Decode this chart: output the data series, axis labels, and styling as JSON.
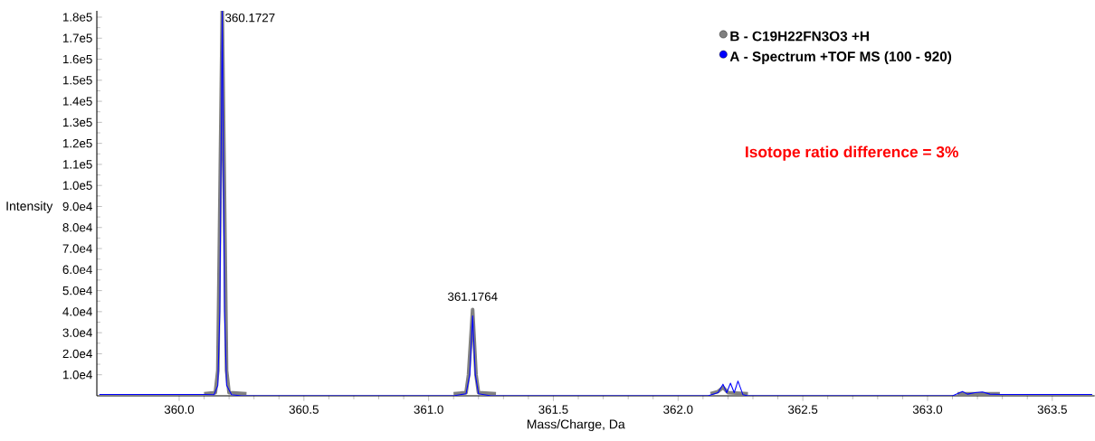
{
  "chart_data": {
    "type": "line",
    "xlabel": "Mass/Charge, Da",
    "ylabel": "Intensity",
    "xlim": [
      359.67,
      363.67
    ],
    "ylim": [
      0,
      183000
    ],
    "xticks": [
      {
        "value": 360.0,
        "label": "360.0"
      },
      360.5,
      {
        "value": 361.0,
        "label": "361.0"
      },
      361.5,
      {
        "value": 362.0,
        "label": "362.0"
      },
      362.5,
      {
        "value": 363.0,
        "label": "363.0"
      },
      363.5
    ],
    "yticks": [
      {
        "value": 10000,
        "label": "1.0e4"
      },
      {
        "value": 20000,
        "label": "2.0e4"
      },
      {
        "value": 30000,
        "label": "3.0e4"
      },
      {
        "value": 40000,
        "label": "4.0e4"
      },
      {
        "value": 50000,
        "label": "5.0e4"
      },
      {
        "value": 60000,
        "label": "6.0e4"
      },
      {
        "value": 70000,
        "label": "7.0e4"
      },
      {
        "value": 80000,
        "label": "8.0e4"
      },
      {
        "value": 90000,
        "label": "9.0e4"
      },
      {
        "value": 100000,
        "label": "1.0e5"
      },
      {
        "value": 110000,
        "label": "1.1e5"
      },
      {
        "value": 120000,
        "label": "1.2e5"
      },
      {
        "value": 130000,
        "label": "1.3e5"
      },
      {
        "value": 140000,
        "label": "1.4e5"
      },
      {
        "value": 150000,
        "label": "1.5e5"
      },
      {
        "value": 160000,
        "label": "1.6e5"
      },
      {
        "value": 170000,
        "label": "1.7e5"
      },
      {
        "value": 180000,
        "label": "1.8e5"
      }
    ],
    "legend": "top right",
    "series": [
      {
        "name": "B - C19H22FN3O3 +H",
        "color": "#808080",
        "x": [
          360.1,
          360.145,
          360.155,
          360.1727,
          360.19,
          360.2,
          360.27,
          360.6,
          361.1,
          361.15,
          361.16,
          361.1764,
          361.19,
          361.2,
          361.27,
          361.7,
          362.13,
          362.16,
          362.18,
          362.2,
          362.28,
          362.7,
          363.12,
          363.29
        ],
        "values": [
          1000,
          1500,
          12000,
          183000,
          12000,
          1500,
          1000,
          null,
          1000,
          1500,
          10000,
          41000,
          10000,
          1500,
          1000,
          null,
          1000,
          2000,
          4000,
          1500,
          1000,
          null,
          1000,
          1000
        ]
      },
      {
        "name": "A - Spectrum  +TOF MS (100 - 920)",
        "color": "#0000ff",
        "x": [
          359.68,
          360.1,
          360.14,
          360.155,
          360.163,
          360.1727,
          360.182,
          360.19,
          360.21,
          360.25,
          361.1,
          361.15,
          361.165,
          361.1764,
          361.187,
          361.2,
          361.25,
          362.12,
          362.16,
          362.18,
          362.195,
          362.21,
          362.225,
          362.24,
          362.26,
          362.28,
          363.1,
          363.14,
          363.16,
          363.19,
          363.22,
          363.25,
          363.29,
          363.66
        ],
        "values": [
          600,
          600,
          500,
          5000,
          40000,
          183000,
          40000,
          5000,
          500,
          0,
          0,
          1000,
          10000,
          38000,
          10000,
          1000,
          0,
          0,
          1500,
          5500,
          1500,
          6000,
          1500,
          7000,
          500,
          0,
          0,
          2000,
          800,
          1500,
          1800,
          800,
          600,
          600
        ]
      }
    ],
    "annotations": [
      {
        "text": "360.1727",
        "x": 360.1727,
        "y": 183000
      },
      {
        "text": "361.1764",
        "x": 361.1764,
        "y": 41000
      },
      "Isotope ratio difference = 3%"
    ]
  }
}
